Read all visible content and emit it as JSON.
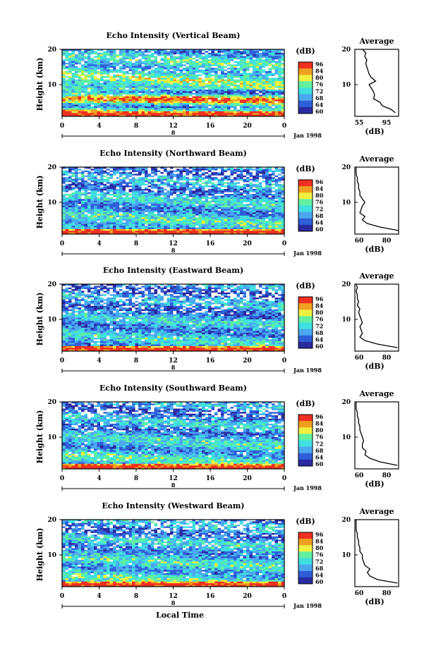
{
  "figure": {
    "x_axis_title": "Local Time",
    "date_label": "Jan 1998",
    "colorbar_unit": "(dB)",
    "avg_title": "Average",
    "avg_xlabel": "(dB)",
    "y_axis_title": "Height (km)"
  },
  "colors": {
    "scale": [
      "#2a2aa0",
      "#2f5fd8",
      "#4aa8f0",
      "#40e0e0",
      "#60f0a0",
      "#f0f040",
      "#f0a020",
      "#f03020"
    ]
  },
  "chart_data": [
    {
      "type": "heatmap",
      "title": "Echo Intensity (Vertical Beam)",
      "xlabel": "Local Time",
      "ylabel": "Height (km)",
      "xlim": [
        0,
        24
      ],
      "ylim": [
        1,
        20
      ],
      "x_ticks": [
        "0",
        "4",
        "8",
        "12",
        "16",
        "20",
        "0"
      ],
      "y_ticks": [
        "20",
        "10"
      ],
      "colorbar": {
        "label": "(dB)",
        "ticks": [
          "96",
          "84",
          "80",
          "76",
          "72",
          "68",
          "64",
          "60"
        ]
      },
      "base_level": 0.45,
      "average": {
        "title": "Average",
        "xlabel": "(dB)",
        "x_ticks": [
          "55",
          "95"
        ],
        "heights": [
          2,
          3,
          4,
          5,
          6,
          7,
          8,
          9,
          10,
          11,
          12,
          13,
          14,
          15,
          16,
          17,
          18,
          19,
          20
        ],
        "values": [
          92,
          88,
          80,
          78,
          72,
          73,
          72,
          70,
          68,
          74,
          70,
          68,
          67,
          66,
          65,
          66,
          64,
          65,
          62
        ]
      }
    },
    {
      "type": "heatmap",
      "title": "Echo Intensity (Northward Beam)",
      "xlabel": "Local Time",
      "ylabel": "Height (km)",
      "xlim": [
        0,
        24
      ],
      "ylim": [
        1,
        20
      ],
      "x_ticks": [
        "0",
        "4",
        "8",
        "12",
        "16",
        "20",
        "0"
      ],
      "y_ticks": [
        "20",
        "10"
      ],
      "colorbar": {
        "label": "(dB)",
        "ticks": [
          "96",
          "84",
          "80",
          "76",
          "72",
          "68",
          "64",
          "60"
        ]
      },
      "base_level": 0.25,
      "average": {
        "title": "Average",
        "xlabel": "(dB)",
        "x_ticks": [
          "60",
          "80"
        ],
        "heights": [
          2,
          3,
          4,
          5,
          6,
          7,
          8,
          9,
          10,
          11,
          12,
          13,
          14,
          15,
          16,
          17,
          18,
          19,
          20
        ],
        "values": [
          95,
          80,
          70,
          66,
          68,
          64,
          65,
          66,
          68,
          66,
          64,
          64,
          63,
          63,
          62,
          62,
          61,
          61,
          61
        ]
      }
    },
    {
      "type": "heatmap",
      "title": "Echo Intensity (Eastward Beam)",
      "xlabel": "Local Time",
      "ylabel": "Height (km)",
      "xlim": [
        0,
        24
      ],
      "ylim": [
        1,
        20
      ],
      "x_ticks": [
        "0",
        "4",
        "8",
        "12",
        "16",
        "20",
        "0"
      ],
      "y_ticks": [
        "20",
        "10"
      ],
      "colorbar": {
        "label": "(dB)",
        "ticks": [
          "96",
          "84",
          "80",
          "76",
          "72",
          "68",
          "64",
          "60"
        ]
      },
      "base_level": 0.22,
      "average": {
        "title": "Average",
        "xlabel": "(dB)",
        "x_ticks": [
          "60",
          "80"
        ],
        "heights": [
          2,
          3,
          4,
          5,
          6,
          7,
          8,
          9,
          10,
          11,
          12,
          13,
          14,
          15,
          16,
          17,
          18,
          19,
          20
        ],
        "values": [
          94,
          78,
          68,
          64,
          66,
          65,
          64,
          66,
          65,
          64,
          63,
          64,
          62,
          63,
          62,
          62,
          61,
          62,
          61
        ]
      }
    },
    {
      "type": "heatmap",
      "title": "Echo Intensity (Southward Beam)",
      "xlabel": "Local Time",
      "ylabel": "Height (km)",
      "xlim": [
        0,
        24
      ],
      "ylim": [
        1,
        20
      ],
      "x_ticks": [
        "0",
        "4",
        "8",
        "12",
        "16",
        "20",
        "0"
      ],
      "y_ticks": [
        "20",
        "10"
      ],
      "colorbar": {
        "label": "(dB)",
        "ticks": [
          "96",
          "84",
          "80",
          "76",
          "72",
          "68",
          "64",
          "60"
        ]
      },
      "base_level": 0.26,
      "average": {
        "title": "Average",
        "xlabel": "(dB)",
        "x_ticks": [
          "60",
          "80"
        ],
        "heights": [
          2,
          3,
          4,
          5,
          6,
          7,
          8,
          9,
          10,
          11,
          12,
          13,
          14,
          15,
          16,
          17,
          18,
          19,
          20
        ],
        "values": [
          94,
          80,
          72,
          68,
          69,
          66,
          66,
          67,
          66,
          65,
          64,
          64,
          63,
          63,
          62,
          62,
          61,
          61,
          61
        ]
      }
    },
    {
      "type": "heatmap",
      "title": "Echo Intensity (Westward Beam)",
      "xlabel": "Local Time",
      "ylabel": "Height (km)",
      "xlim": [
        0,
        24
      ],
      "ylim": [
        1,
        20
      ],
      "x_ticks": [
        "0",
        "4",
        "8",
        "12",
        "16",
        "20",
        "0"
      ],
      "y_ticks": [
        "20",
        "10"
      ],
      "colorbar": {
        "label": "(dB)",
        "ticks": [
          "96",
          "84",
          "80",
          "76",
          "72",
          "68",
          "64",
          "60"
        ]
      },
      "base_level": 0.27,
      "average": {
        "title": "Average",
        "xlabel": "(dB)",
        "x_ticks": [
          "60",
          "80"
        ],
        "heights": [
          2,
          3,
          4,
          5,
          6,
          7,
          8,
          9,
          10,
          11,
          12,
          13,
          14,
          15,
          16,
          17,
          18,
          19,
          20
        ],
        "values": [
          94,
          78,
          72,
          70,
          72,
          68,
          67,
          66,
          66,
          64,
          64,
          63,
          63,
          62,
          62,
          61,
          61,
          61,
          61
        ]
      }
    }
  ]
}
